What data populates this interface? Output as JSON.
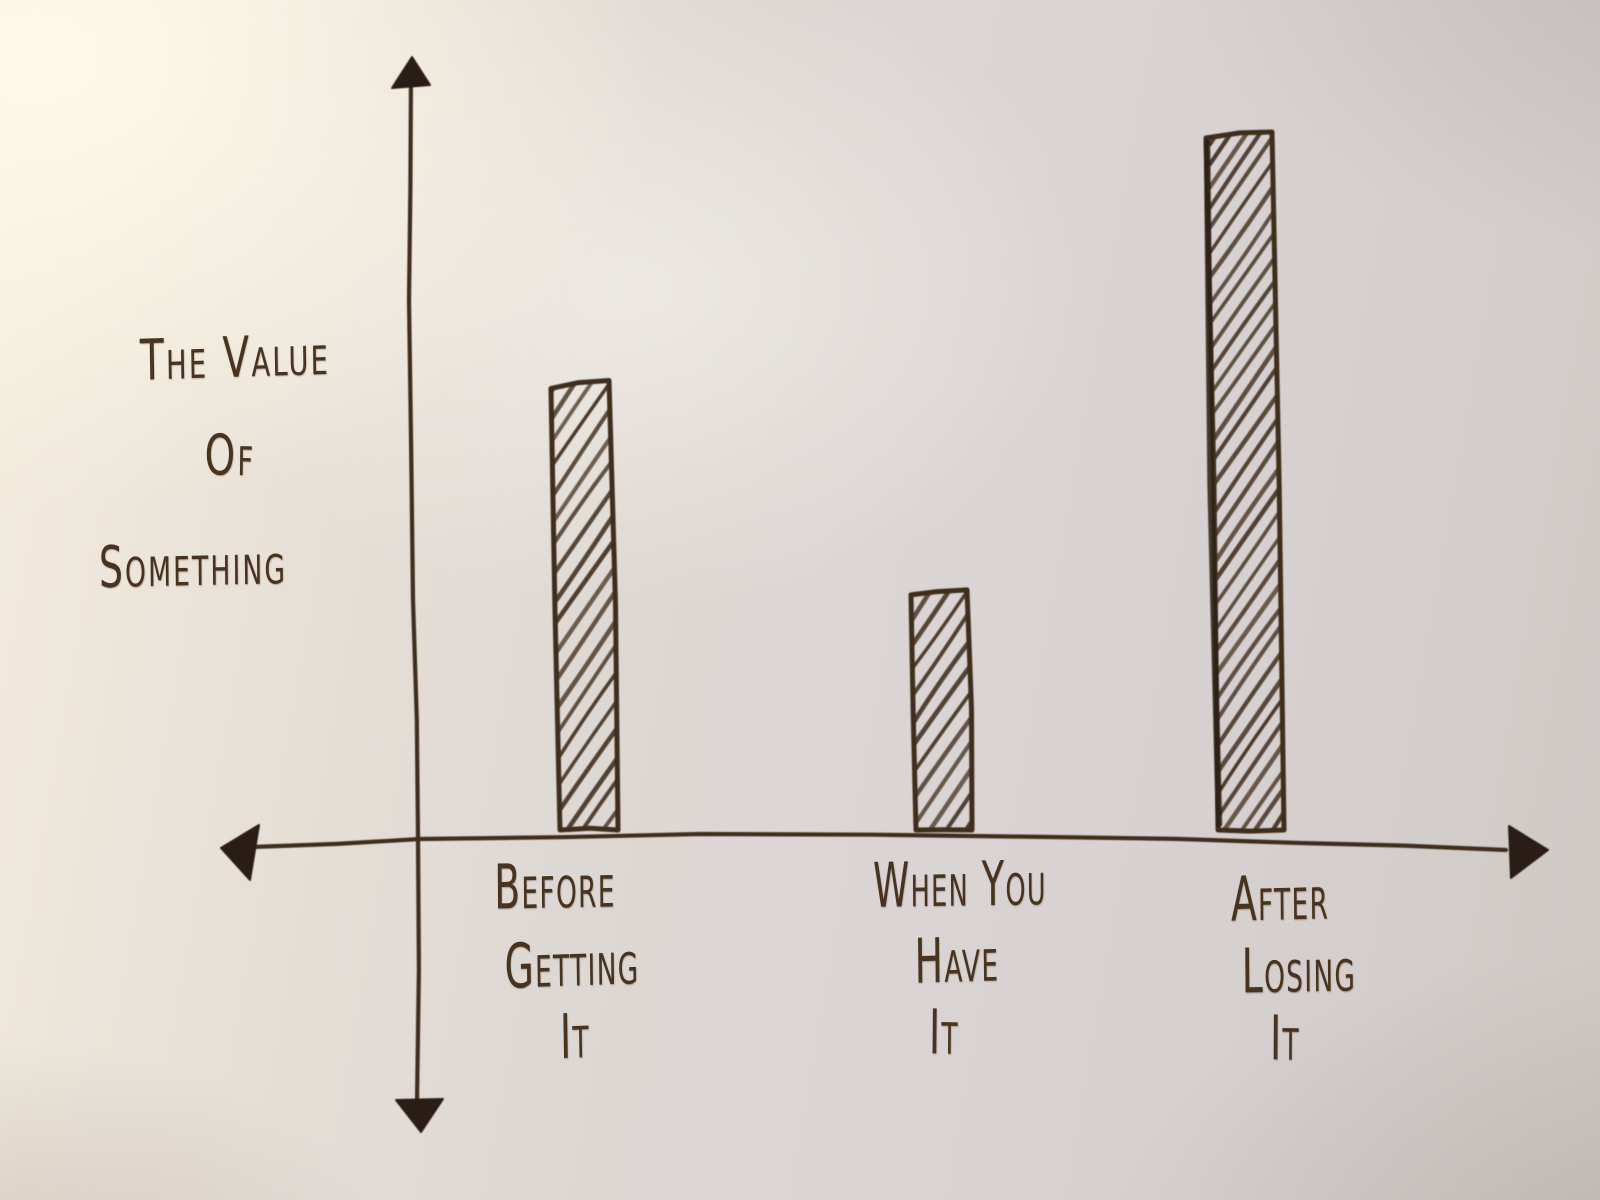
{
  "chart_data": {
    "type": "bar",
    "title": "",
    "xlabel": "",
    "ylabel": "The Value Of Something",
    "ylabel_lines": [
      "The Value",
      "Of",
      "Something"
    ],
    "categories": [
      "Before Getting It",
      "When You Have It",
      "After Losing It"
    ],
    "category_lines": [
      [
        "Before",
        "Getting",
        "It"
      ],
      [
        "When You",
        "Have",
        "It"
      ],
      [
        "After",
        "Losing",
        "It"
      ]
    ],
    "values": [
      64,
      34,
      100
    ],
    "ylim": [
      0,
      100
    ],
    "y_tick_labels": [],
    "x_tick_labels": [],
    "grid": false,
    "legend_position": "none",
    "axis_arrows": {
      "x_axis": "both-ends",
      "y_axis": "both-ends"
    },
    "bar_style": "hand-drawn outline with diagonal hatch fill",
    "colors": {
      "ink": "#3f2d1e",
      "arrow_fill": "#2c1f15",
      "paper": "#ded8d4",
      "paper_highlight": "#f9f4e4",
      "paper_shadow": "#cac3bf"
    }
  }
}
